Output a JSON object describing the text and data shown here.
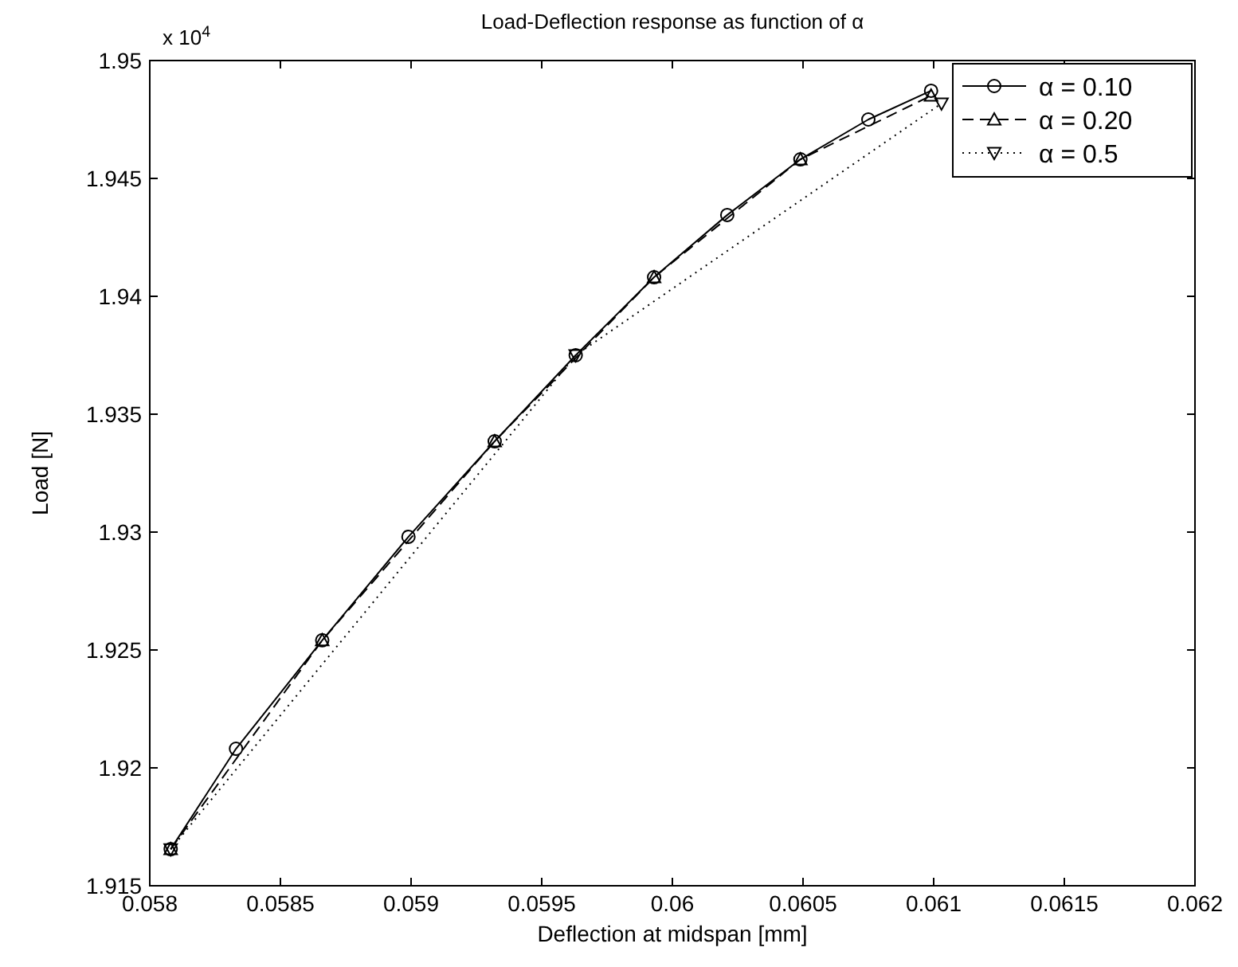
{
  "chart_data": {
    "type": "line",
    "title": "Load-Deflection response as function of α",
    "xlabel": "Deflection at midspan [mm]",
    "ylabel": "Load [N]",
    "annotations": [
      "x 10$^{4}$"
    ],
    "xlim": [
      0.058,
      0.062
    ],
    "xticks": [
      0.058,
      0.0585,
      0.059,
      0.0595,
      0.06,
      0.0605,
      0.061,
      0.0615,
      0.062
    ],
    "ylim": [
      1.915,
      1.95
    ],
    "yticks": [
      1.915,
      1.92,
      1.925,
      1.93,
      1.935,
      1.94,
      1.945,
      1.95
    ],
    "grid": false,
    "legend": "top right",
    "series": [
      {
        "name": "α = 0.10",
        "color": "#000000",
        "marker": "circle",
        "line_style": "solid",
        "x": [
          0.05808,
          0.05833,
          0.05866,
          0.05899,
          0.05932,
          0.05963,
          0.05993,
          0.06021,
          0.06049,
          0.06075,
          0.06099
        ],
        "values": [
          1.91655,
          1.92081,
          1.92541,
          1.9298,
          1.93385,
          1.9375,
          1.94081,
          1.94345,
          1.94581,
          1.9475,
          1.94872
        ]
      },
      {
        "name": "α = 0.20",
        "color": "#000000",
        "marker": "triangle",
        "line_style": "dashed",
        "x": [
          0.05808,
          0.05866,
          0.05932,
          0.05993,
          0.06049,
          0.06099
        ],
        "values": [
          1.91655,
          1.92541,
          1.93385,
          1.94081,
          1.94581,
          1.94851
        ]
      },
      {
        "name": "α = 0.5",
        "color": "#000000",
        "marker": "triangle-down",
        "line_style": "dotted",
        "x": [
          0.05808,
          0.05963,
          0.06103
        ],
        "values": [
          1.91655,
          1.9375,
          1.94818
        ]
      }
    ]
  }
}
